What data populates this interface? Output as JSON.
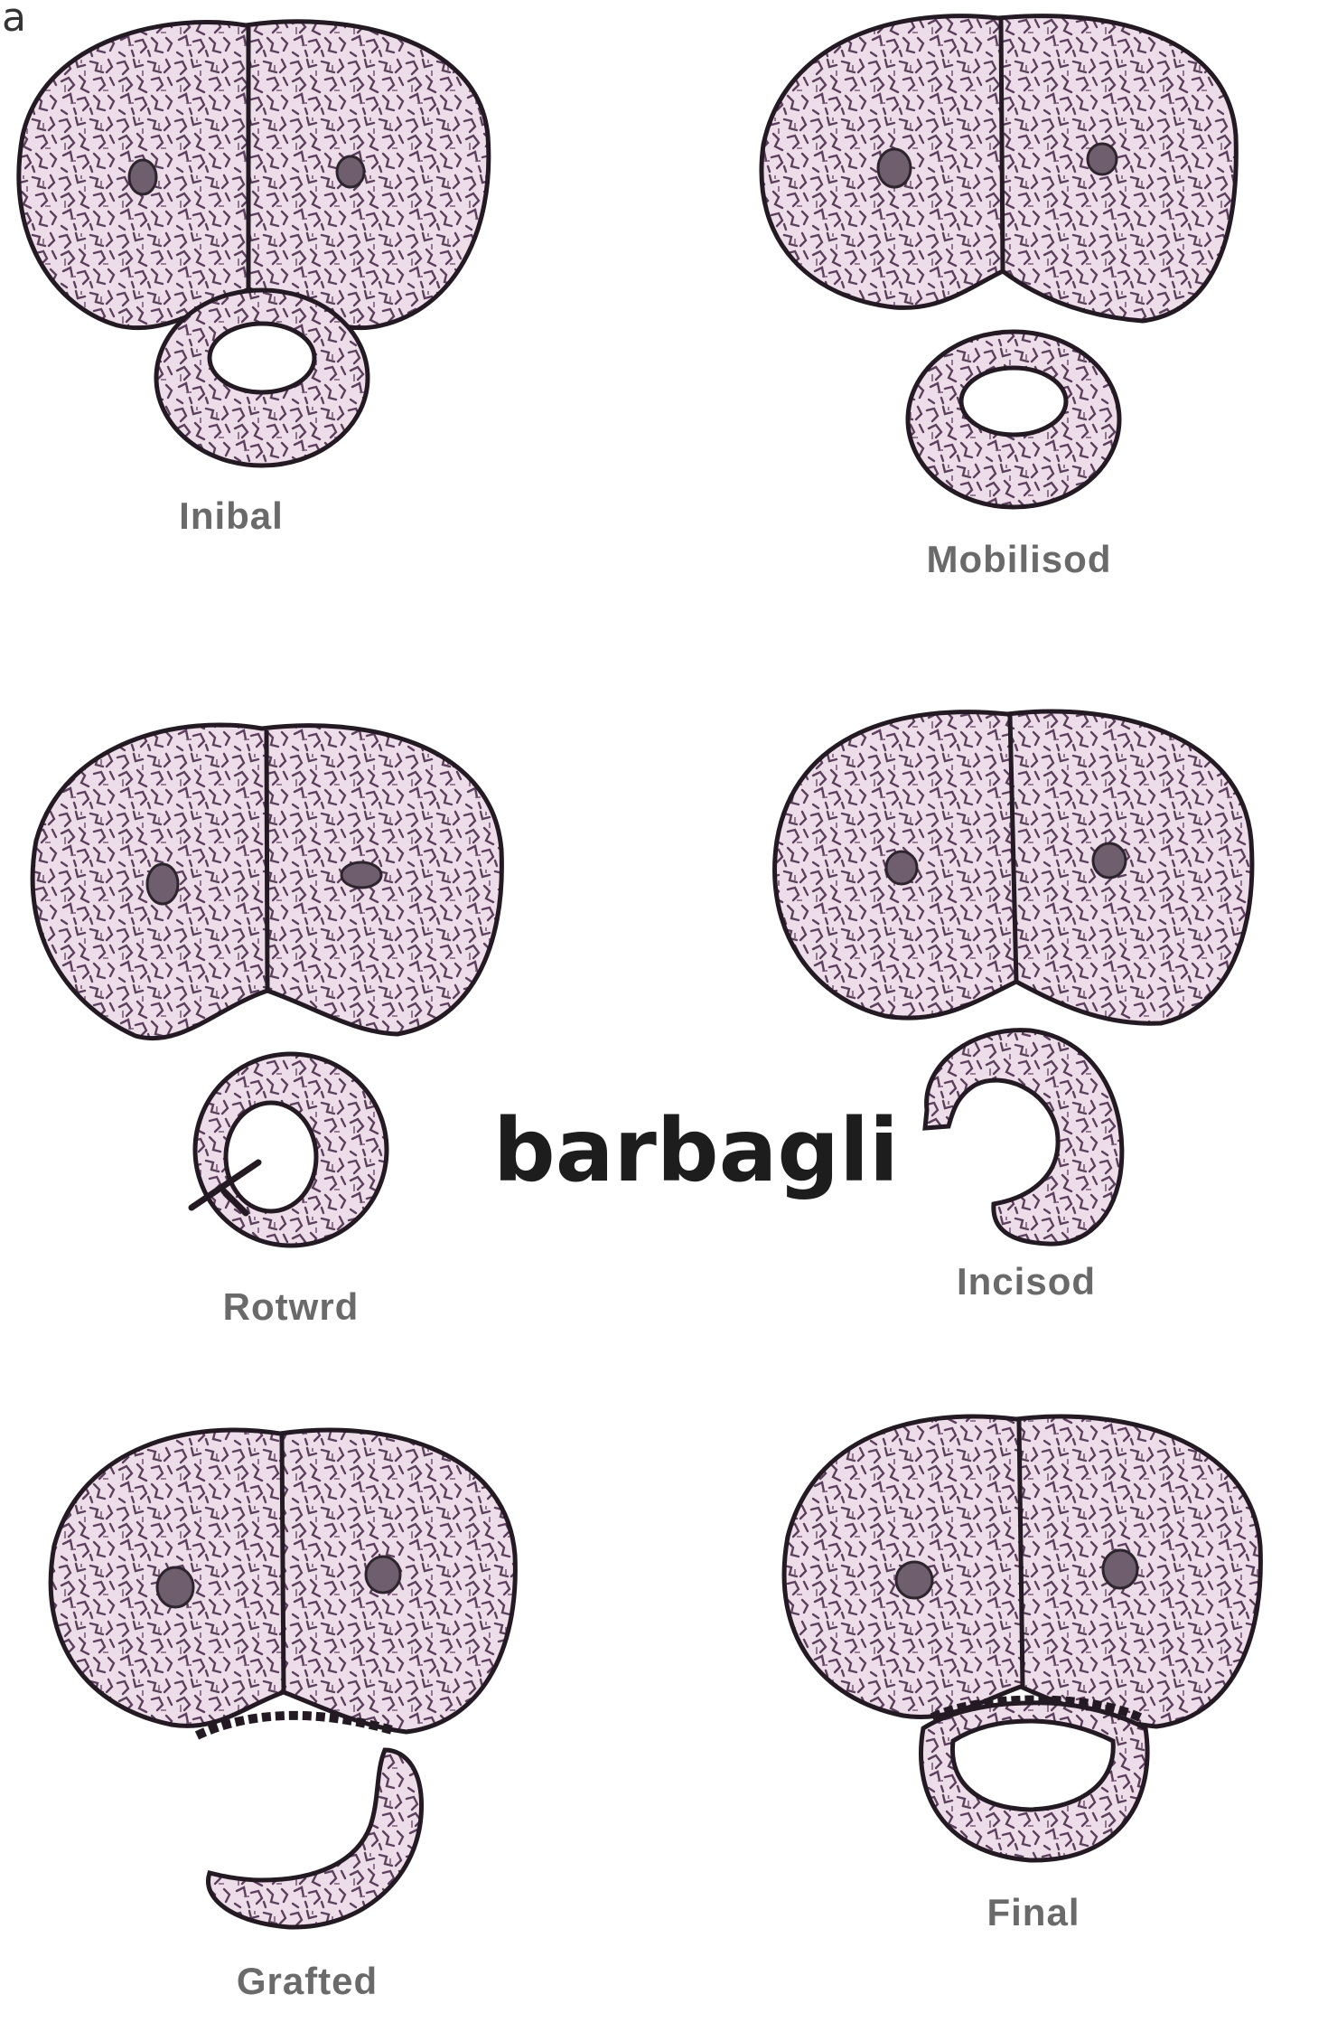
{
  "figure": {
    "panel_letter": "a",
    "center_title": "barbagli",
    "stages": [
      {
        "id": "initial",
        "label": "Inibal"
      },
      {
        "id": "mobilised",
        "label": "Mobilisod"
      },
      {
        "id": "rotated",
        "label": "Rotwrd"
      },
      {
        "id": "incised",
        "label": "Incisod"
      },
      {
        "id": "grafted",
        "label": "Grafted"
      },
      {
        "id": "final",
        "label": "Final"
      }
    ]
  },
  "colors": {
    "tissue_fill": "#ecdde9",
    "tissue_pattern": "#5b3f5c",
    "outline": "#241a24"
  }
}
